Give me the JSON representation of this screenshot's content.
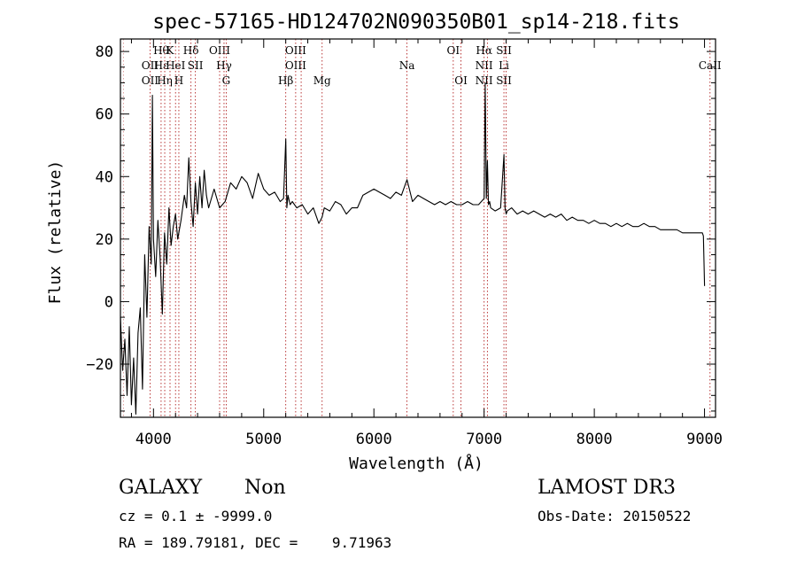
{
  "chart_data": {
    "type": "line",
    "title": "spec-57165-HD124702N090350B01_sp14-218.fits",
    "xlabel": "Wavelength (Å)",
    "ylabel": "Flux (relative)",
    "xlim": [
      3700,
      9100
    ],
    "ylim": [
      -37,
      84
    ],
    "xticks": [
      4000,
      5000,
      6000,
      7000,
      8000,
      9000
    ],
    "yticks": [
      -20,
      0,
      20,
      40,
      60,
      80
    ],
    "grid": false,
    "series": [
      {
        "name": "flux",
        "x": [
          3700,
          3720,
          3740,
          3760,
          3780,
          3800,
          3820,
          3840,
          3860,
          3880,
          3900,
          3920,
          3940,
          3960,
          3980,
          3990,
          4000,
          4020,
          4040,
          4060,
          4080,
          4100,
          4120,
          4140,
          4160,
          4180,
          4200,
          4220,
          4250,
          4280,
          4300,
          4320,
          4340,
          4360,
          4380,
          4400,
          4420,
          4440,
          4460,
          4480,
          4500,
          4550,
          4600,
          4650,
          4700,
          4750,
          4800,
          4850,
          4900,
          4950,
          5000,
          5050,
          5100,
          5150,
          5180,
          5200,
          5210,
          5220,
          5240,
          5260,
          5300,
          5350,
          5400,
          5450,
          5500,
          5530,
          5550,
          5600,
          5650,
          5700,
          5750,
          5800,
          5850,
          5900,
          5950,
          6000,
          6050,
          6100,
          6150,
          6200,
          6250,
          6300,
          6350,
          6400,
          6450,
          6500,
          6550,
          6600,
          6650,
          6700,
          6750,
          6800,
          6850,
          6900,
          6950,
          7000,
          7010,
          7020,
          7030,
          7040,
          7050,
          7060,
          7100,
          7150,
          7180,
          7190,
          7200,
          7210,
          7250,
          7300,
          7350,
          7400,
          7450,
          7500,
          7550,
          7600,
          7650,
          7700,
          7750,
          7800,
          7850,
          7900,
          7950,
          8000,
          8050,
          8100,
          8150,
          8200,
          8250,
          8300,
          8350,
          8400,
          8450,
          8500,
          8550,
          8600,
          8650,
          8700,
          8750,
          8800,
          8850,
          8900,
          8950,
          8980,
          8990,
          9000
        ],
        "y": [
          -5,
          -22,
          -12,
          -30,
          -8,
          -33,
          -18,
          -36,
          -10,
          -2,
          -28,
          15,
          -5,
          24,
          12,
          66,
          20,
          8,
          26,
          14,
          -4,
          22,
          12,
          30,
          18,
          24,
          28,
          20,
          26,
          34,
          30,
          46,
          32,
          24,
          38,
          28,
          40,
          30,
          42,
          34,
          30,
          36,
          30,
          32,
          38,
          36,
          40,
          38,
          33,
          41,
          36,
          34,
          35,
          32,
          33,
          52,
          30,
          34,
          31,
          32,
          30,
          31,
          28,
          30,
          25,
          27,
          30,
          29,
          32,
          31,
          28,
          30,
          30,
          34,
          35,
          36,
          35,
          34,
          33,
          35,
          34,
          39,
          32,
          34,
          33,
          32,
          31,
          32,
          31,
          32,
          31,
          31,
          32,
          31,
          31,
          33,
          70,
          33,
          45,
          31,
          32,
          30,
          29,
          30,
          47,
          30,
          28,
          29,
          30,
          28,
          29,
          28,
          29,
          28,
          27,
          28,
          27,
          28,
          26,
          27,
          26,
          26,
          25,
          26,
          25,
          25,
          24,
          25,
          24,
          25,
          24,
          24,
          25,
          24,
          24,
          23,
          23,
          23,
          23,
          22,
          22,
          22,
          22,
          22,
          21,
          5
        ]
      }
    ],
    "lines": [
      {
        "wave": 3727,
        "labels": [],
        "pos": [],
        "dim": true
      },
      {
        "wave": 3969,
        "labels": [
          "OII",
          "OII"
        ],
        "pos": [
          1,
          2
        ]
      },
      {
        "wave": 4069,
        "labels": [
          "Hθ",
          "Hε"
        ],
        "pos": [
          0,
          1
        ]
      },
      {
        "wave": 4102,
        "labels": [
          "Hη"
        ],
        "pos": [
          2
        ]
      },
      {
        "wave": 4150,
        "labels": [
          "K"
        ],
        "pos": [
          0
        ]
      },
      {
        "wave": 4200,
        "labels": [
          "HeI"
        ],
        "pos": [
          1
        ]
      },
      {
        "wave": 4230,
        "labels": [
          "H"
        ],
        "pos": [
          2
        ]
      },
      {
        "wave": 4340,
        "labels": [
          "Hδ"
        ],
        "pos": [
          0
        ]
      },
      {
        "wave": 4380,
        "labels": [
          "SII"
        ],
        "pos": [
          1
        ]
      },
      {
        "wave": 4600,
        "labels": [
          "OIII"
        ],
        "pos": [
          0
        ]
      },
      {
        "wave": 4640,
        "labels": [
          "Hγ"
        ],
        "pos": [
          1
        ]
      },
      {
        "wave": 4660,
        "labels": [
          "G"
        ],
        "pos": [
          2
        ]
      },
      {
        "wave": 5200,
        "labels": [
          "Hβ"
        ],
        "pos": [
          2
        ]
      },
      {
        "wave": 5290,
        "labels": [
          "OIII",
          "OIII"
        ],
        "pos": [
          0,
          1
        ]
      },
      {
        "wave": 5340,
        "labels": [],
        "pos": []
      },
      {
        "wave": 5530,
        "labels": [
          "Mg"
        ],
        "pos": [
          2
        ]
      },
      {
        "wave": 6300,
        "labels": [
          "Na"
        ],
        "pos": [
          1
        ]
      },
      {
        "wave": 6720,
        "labels": [
          "OI"
        ],
        "pos": [
          0
        ]
      },
      {
        "wave": 6790,
        "labels": [
          "OI"
        ],
        "pos": [
          2
        ]
      },
      {
        "wave": 7000,
        "labels": [
          "Hα",
          "NII",
          "NII"
        ],
        "pos": [
          0,
          1,
          2
        ]
      },
      {
        "wave": 7030,
        "labels": [],
        "pos": []
      },
      {
        "wave": 7180,
        "labels": [
          "SII",
          "Li",
          "SII"
        ],
        "pos": [
          0,
          1,
          2
        ]
      },
      {
        "wave": 7200,
        "labels": [],
        "pos": []
      },
      {
        "wave": 9050,
        "labels": [
          "CaII"
        ],
        "pos": [
          1
        ]
      }
    ]
  },
  "info": {
    "object_class": "GALAXY",
    "subclass": "Non",
    "cz_line": "cz = 0.1 ± -9999.0",
    "radec_line": "RA = 189.79181, DEC =    9.71963",
    "survey": "LAMOST DR3",
    "obs_date": "Obs-Date: 20150522"
  },
  "colors": {
    "line_marker": "#b22222",
    "spectrum": "#000000"
  }
}
